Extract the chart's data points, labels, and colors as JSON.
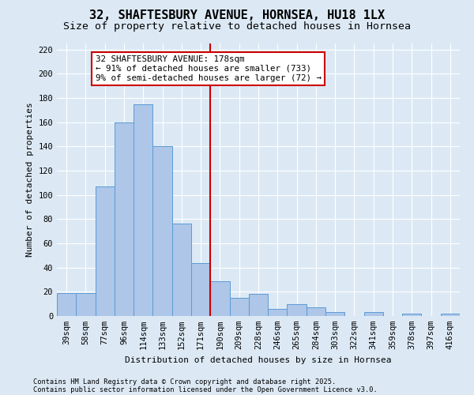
{
  "title": "32, SHAFTESBURY AVENUE, HORNSEA, HU18 1LX",
  "subtitle": "Size of property relative to detached houses in Hornsea",
  "xlabel": "Distribution of detached houses by size in Hornsea",
  "ylabel": "Number of detached properties",
  "categories": [
    "39sqm",
    "58sqm",
    "77sqm",
    "96sqm",
    "114sqm",
    "133sqm",
    "152sqm",
    "171sqm",
    "190sqm",
    "209sqm",
    "228sqm",
    "246sqm",
    "265sqm",
    "284sqm",
    "303sqm",
    "322sqm",
    "341sqm",
    "359sqm",
    "378sqm",
    "397sqm",
    "416sqm"
  ],
  "values": [
    19,
    19,
    107,
    160,
    175,
    140,
    76,
    44,
    29,
    15,
    18,
    6,
    10,
    7,
    3,
    0,
    3,
    0,
    2,
    0,
    2
  ],
  "bar_color": "#aec6e8",
  "bar_edge_color": "#5b9bd5",
  "background_color": "#dce9f5",
  "vline_x": 7.5,
  "vline_color": "#cc0000",
  "annotation_title": "32 SHAFTESBURY AVENUE: 178sqm",
  "annotation_line1": "← 91% of detached houses are smaller (733)",
  "annotation_line2": "9% of semi-detached houses are larger (72) →",
  "annotation_box_color": "#cc0000",
  "ylim": [
    0,
    225
  ],
  "yticks": [
    0,
    20,
    40,
    60,
    80,
    100,
    120,
    140,
    160,
    180,
    200,
    220
  ],
  "footnote1": "Contains HM Land Registry data © Crown copyright and database right 2025.",
  "footnote2": "Contains public sector information licensed under the Open Government Licence v3.0.",
  "title_fontsize": 11,
  "subtitle_fontsize": 9.5,
  "axis_label_fontsize": 8,
  "tick_fontsize": 7.5,
  "annotation_fontsize": 7.8,
  "footnote_fontsize": 6.2
}
